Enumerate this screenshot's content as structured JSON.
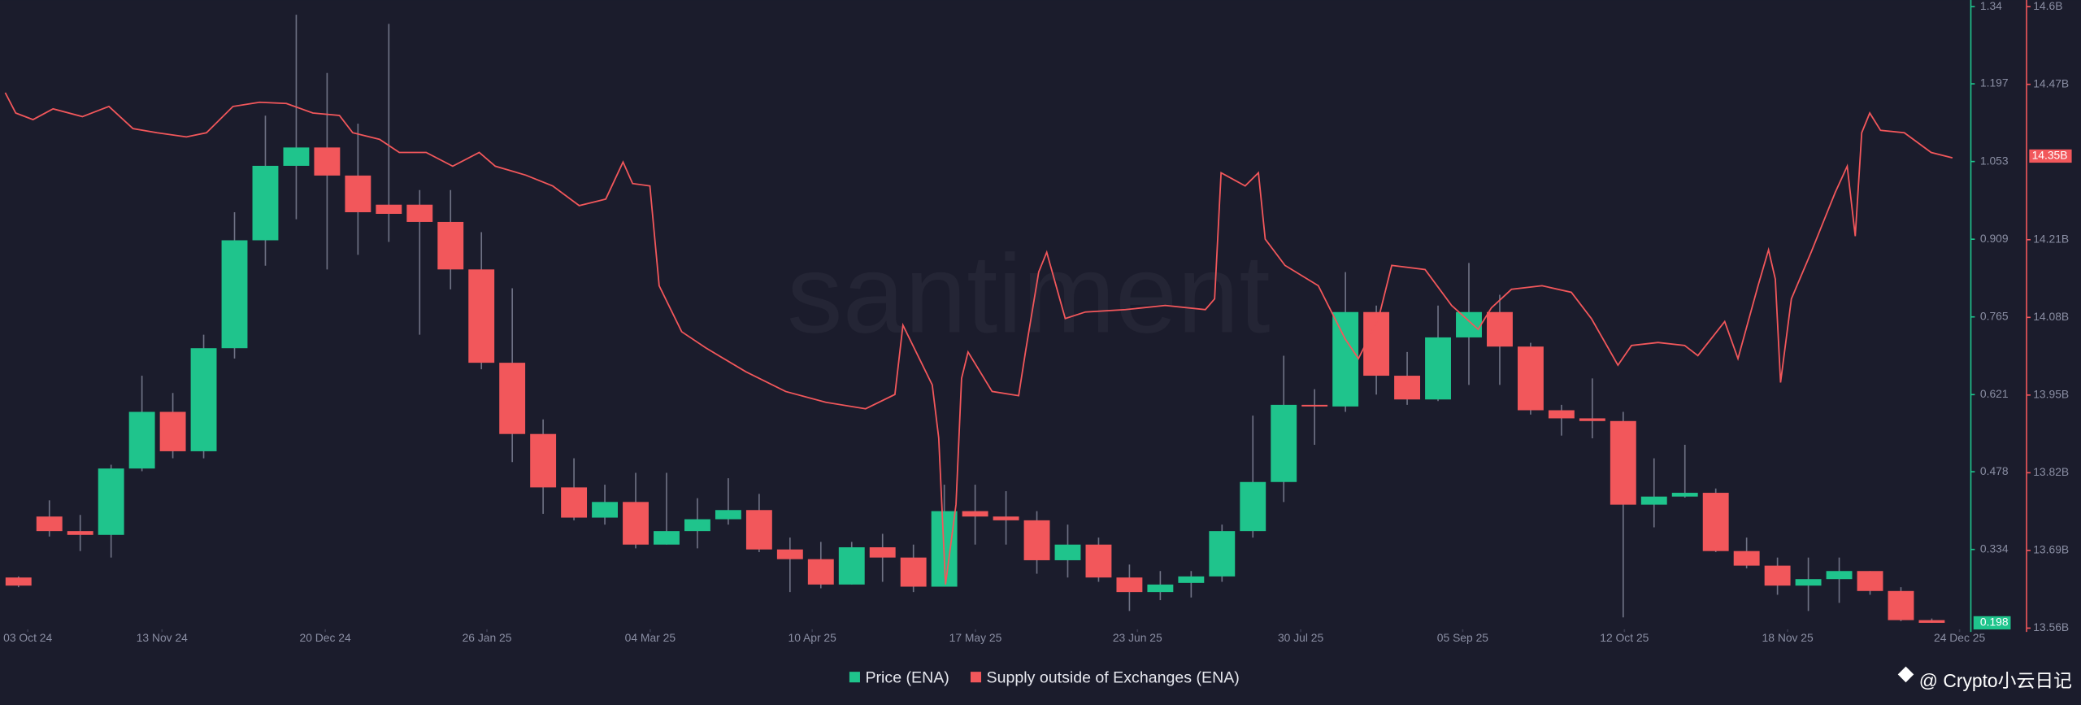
{
  "chart_data": {
    "type": "candlestick",
    "watermark": "santiment",
    "credit": "@ Crypto小云日记",
    "xlim": [
      -0.6,
      63.18
    ],
    "xticks": [
      {
        "value": 0.3,
        "label": "03 Oct 24"
      },
      {
        "value": 4.65,
        "label": "13 Nov 24"
      },
      {
        "value": 9.94,
        "label": "20 Dec 24"
      },
      {
        "value": 15.18,
        "label": "26 Jan 25"
      },
      {
        "value": 20.47,
        "label": "04 Mar 25"
      },
      {
        "value": 25.72,
        "label": "10 Apr 25"
      },
      {
        "value": 31.01,
        "label": "17 May 25"
      },
      {
        "value": 36.26,
        "label": "23 Jun 25"
      },
      {
        "value": 41.55,
        "label": "30 Jul 25"
      },
      {
        "value": 46.8,
        "label": "05 Sep 25"
      },
      {
        "value": 52.04,
        "label": "12 Oct 25"
      },
      {
        "value": 57.33,
        "label": "18 Nov 25"
      },
      {
        "value": 62.9,
        "label": "24 Dec 25"
      }
    ],
    "ylim": [
      0.186,
      1.34
    ],
    "yticks": [
      1.34,
      1.197,
      1.053,
      0.909,
      0.765,
      0.621,
      0.478,
      0.334
    ],
    "y2lim": [
      13.558,
      14.6
    ],
    "y2ticks": [
      {
        "value": 14.6,
        "label": "14.6B"
      },
      {
        "value": 14.47,
        "label": "14.47B"
      },
      {
        "value": 14.21,
        "label": "14.21B"
      },
      {
        "value": 14.08,
        "label": "14.08B"
      },
      {
        "value": 13.95,
        "label": "13.95B"
      },
      {
        "value": 13.82,
        "label": "13.82B"
      },
      {
        "value": 13.69,
        "label": "13.69B"
      },
      {
        "value": 13.56,
        "label": "13.56B"
      }
    ],
    "last_price": 0.198,
    "last_supply": {
      "value": 14.35,
      "label": "14.35B"
    },
    "series": [
      {
        "name": "Price (ENA)",
        "type": "candlestick",
        "color": "#1fc48c",
        "down_color": "#f2575b",
        "open": [
          0.282,
          0.395,
          0.368,
          0.361,
          0.484,
          0.589,
          0.516,
          0.707,
          0.907,
          1.045,
          1.079,
          1.027,
          0.973,
          0.973,
          0.941,
          0.853,
          0.68,
          0.548,
          0.449,
          0.393,
          0.422,
          0.343,
          0.368,
          0.39,
          0.407,
          0.334,
          0.316,
          0.269,
          0.338,
          0.319,
          0.265,
          0.405,
          0.395,
          0.388,
          0.314,
          0.343,
          0.282,
          0.255,
          0.272,
          0.284,
          0.368,
          0.459,
          0.602,
          0.599,
          0.774,
          0.656,
          0.612,
          0.727,
          0.774,
          0.71,
          0.592,
          0.577,
          0.572,
          0.417,
          0.432,
          0.439,
          0.331,
          0.304,
          0.267,
          0.279,
          0.294,
          0.257,
          0.203
        ],
        "high": [
          0.284,
          0.425,
          0.398,
          0.491,
          0.656,
          0.624,
          0.732,
          0.959,
          1.138,
          1.325,
          1.217,
          1.123,
          1.308,
          1.0,
          1.0,
          0.922,
          0.818,
          0.575,
          0.503,
          0.454,
          0.476,
          0.476,
          0.429,
          0.466,
          0.437,
          0.356,
          0.348,
          0.348,
          0.363,
          0.343,
          0.454,
          0.454,
          0.442,
          0.405,
          0.38,
          0.356,
          0.306,
          0.294,
          0.294,
          0.38,
          0.582,
          0.693,
          0.631,
          0.848,
          0.786,
          0.7,
          0.786,
          0.865,
          0.806,
          0.717,
          0.602,
          0.651,
          0.589,
          0.503,
          0.528,
          0.447,
          0.356,
          0.319,
          0.319,
          0.319,
          0.294,
          0.264,
          0.206
        ],
        "low": [
          0.264,
          0.358,
          0.331,
          0.319,
          0.479,
          0.503,
          0.503,
          0.688,
          0.86,
          0.946,
          0.853,
          0.88,
          0.904,
          0.732,
          0.816,
          0.668,
          0.496,
          0.4,
          0.388,
          0.38,
          0.336,
          0.343,
          0.336,
          0.38,
          0.329,
          0.255,
          0.262,
          0.269,
          0.274,
          0.255,
          0.265,
          0.343,
          0.343,
          0.289,
          0.282,
          0.274,
          0.22,
          0.24,
          0.245,
          0.274,
          0.356,
          0.422,
          0.528,
          0.589,
          0.621,
          0.602,
          0.609,
          0.639,
          0.639,
          0.584,
          0.545,
          0.54,
          0.208,
          0.375,
          0.43,
          0.329,
          0.299,
          0.25,
          0.22,
          0.235,
          0.25,
          0.201,
          0.198
        ],
        "close": [
          0.267,
          0.368,
          0.361,
          0.484,
          0.589,
          0.516,
          0.707,
          0.907,
          1.045,
          1.079,
          1.027,
          0.959,
          0.956,
          0.941,
          0.853,
          0.68,
          0.548,
          0.449,
          0.393,
          0.422,
          0.343,
          0.368,
          0.39,
          0.407,
          0.334,
          0.316,
          0.269,
          0.338,
          0.319,
          0.265,
          0.405,
          0.395,
          0.388,
          0.314,
          0.343,
          0.282,
          0.255,
          0.269,
          0.284,
          0.368,
          0.459,
          0.602,
          0.599,
          0.774,
          0.656,
          0.612,
          0.727,
          0.774,
          0.71,
          0.592,
          0.577,
          0.572,
          0.417,
          0.432,
          0.439,
          0.331,
          0.304,
          0.267,
          0.279,
          0.294,
          0.257,
          0.203,
          0.198
        ]
      },
      {
        "name": "Supply outside of Exchanges (ENA)",
        "type": "line",
        "axis": "y2",
        "color": "#f2575b",
        "x": [
          -0.43,
          -0.09,
          0.47,
          1.12,
          2.07,
          2.93,
          3.71,
          4.49,
          5.44,
          6.09,
          6.95,
          7.81,
          8.68,
          9.54,
          10.4,
          10.83,
          11.7,
          12.34,
          13.21,
          14.07,
          14.93,
          15.45,
          16.44,
          17.31,
          18.17,
          19.03,
          19.59,
          19.9,
          20.46,
          20.76,
          21.49,
          22.27,
          23.57,
          24.86,
          26.15,
          27.45,
          28.4,
          28.66,
          29.61,
          29.82,
          30.04,
          30.38,
          30.56,
          30.77,
          31.55,
          32.41,
          32.63,
          33.06,
          33.32,
          33.92,
          34.57,
          35.87,
          37.16,
          38.46,
          38.76,
          38.97,
          39.75,
          40.18,
          40.4,
          41.04,
          42.12,
          42.99,
          43.42,
          44.07,
          44.5,
          45.58,
          46.44,
          47.3,
          47.73,
          48.38,
          49.37,
          50.32,
          50.97,
          51.83,
          52.27,
          53.13,
          53.99,
          54.42,
          55.29,
          55.72,
          56.37,
          56.71,
          56.93,
          57.1,
          57.45,
          58.09,
          58.87,
          59.26,
          59.52,
          59.73,
          59.99,
          60.34,
          61.11,
          61.98,
          62.67
        ],
        "values": [
          14.456,
          14.422,
          14.411,
          14.429,
          14.416,
          14.433,
          14.396,
          14.389,
          14.382,
          14.389,
          14.433,
          14.44,
          14.438,
          14.422,
          14.418,
          14.389,
          14.378,
          14.356,
          14.356,
          14.333,
          14.356,
          14.333,
          14.318,
          14.3,
          14.267,
          14.278,
          14.34,
          14.304,
          14.3,
          14.133,
          14.056,
          14.029,
          13.989,
          13.956,
          13.938,
          13.927,
          13.951,
          14.067,
          13.967,
          13.878,
          13.633,
          13.767,
          13.978,
          14.022,
          13.956,
          13.949,
          14.022,
          14.156,
          14.189,
          14.078,
          14.089,
          14.093,
          14.1,
          14.093,
          14.111,
          14.322,
          14.3,
          14.322,
          14.211,
          14.167,
          14.133,
          14.044,
          14.011,
          14.078,
          14.167,
          14.16,
          14.1,
          14.06,
          14.096,
          14.127,
          14.133,
          14.122,
          14.078,
          14.0,
          14.033,
          14.038,
          14.033,
          14.016,
          14.073,
          14.011,
          14.133,
          14.193,
          14.144,
          13.971,
          14.111,
          14.189,
          14.289,
          14.333,
          14.216,
          14.389,
          14.422,
          14.393,
          14.389,
          14.356,
          14.347
        ]
      }
    ]
  }
}
